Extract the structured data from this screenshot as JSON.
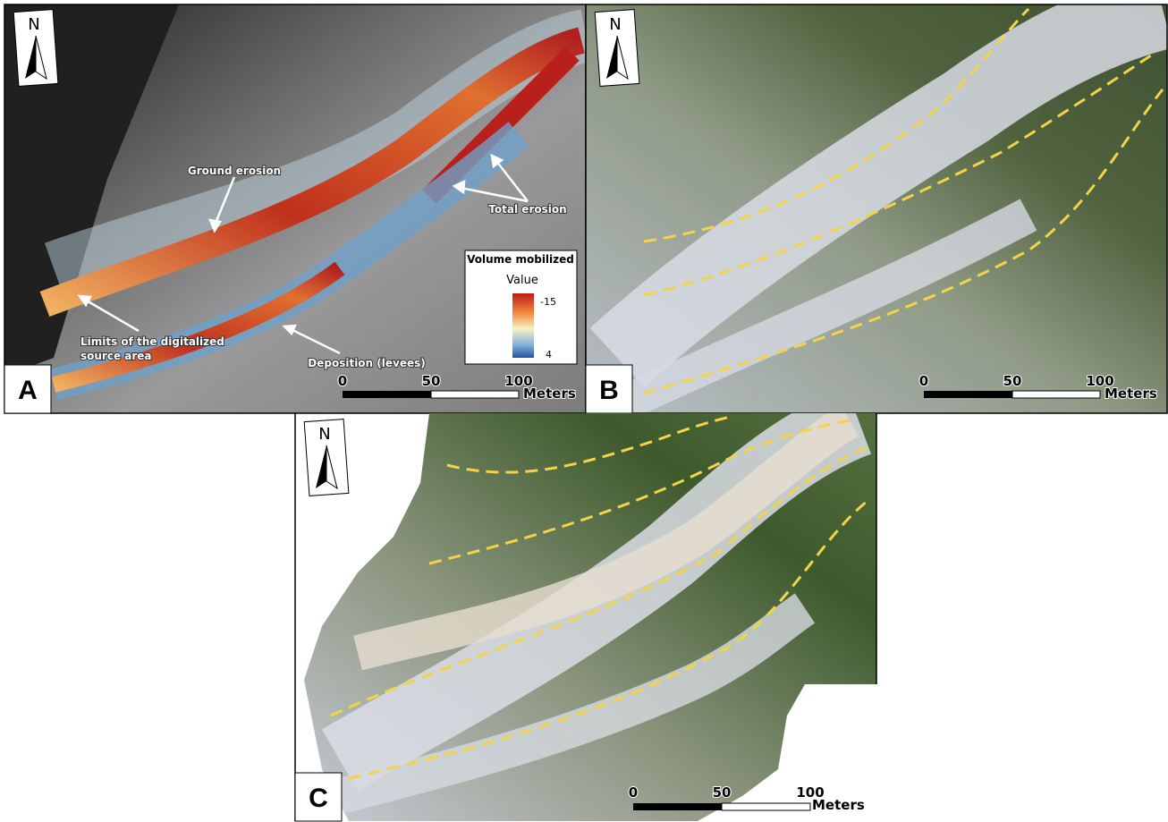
{
  "panels": [
    {
      "label": "A",
      "north": "N",
      "annotations": [
        [
          "Ground erosion"
        ],
        [
          "Total erosion"
        ],
        [
          "Limits of the digitalized",
          "source area"
        ],
        [
          "Deposition (levees)"
        ]
      ],
      "legend": {
        "title": "Volume mobilized",
        "subtitle": "Value",
        "range": [
          -15,
          4
        ]
      },
      "scale": {
        "ticks": [
          0,
          50,
          100
        ],
        "unit": "Meters"
      }
    },
    {
      "label": "B",
      "north": "N",
      "scale": {
        "ticks": [
          0,
          50,
          100
        ],
        "unit": "Meters"
      }
    },
    {
      "label": "C",
      "north": "N",
      "scale": {
        "ticks": [
          0,
          50,
          100
        ],
        "unit": "Meters"
      }
    }
  ]
}
